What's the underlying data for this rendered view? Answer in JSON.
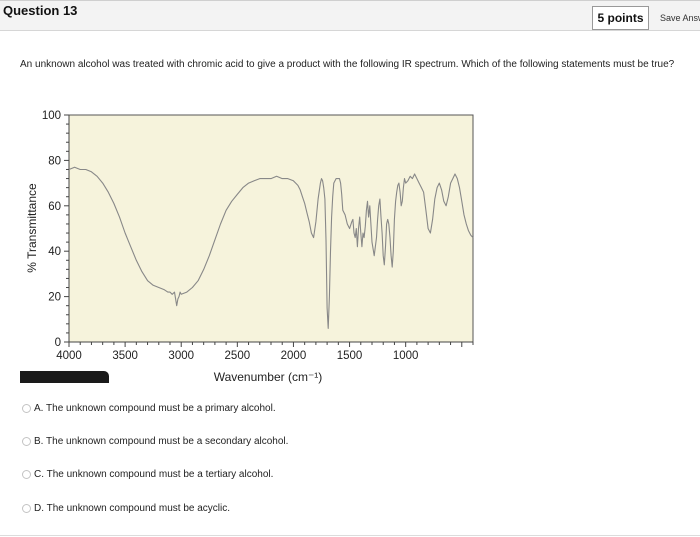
{
  "header": {
    "title": "Question 13",
    "points": "5 points",
    "save_label": "Save Answer"
  },
  "question": {
    "text": "An unknown alcohol was treated with chromic acid to give a product with the following IR spectrum. Which of the following statements must be true?"
  },
  "chart_data": {
    "type": "line",
    "xlabel": "Wavenumber (cm⁻¹)",
    "ylabel": "% Transmittance",
    "xlim": [
      4000,
      400
    ],
    "ylim": [
      0,
      100
    ],
    "x_ticks": [
      4000,
      3500,
      3000,
      2500,
      2000,
      1500,
      1000
    ],
    "y_ticks": [
      0,
      20,
      40,
      60,
      80,
      100
    ],
    "plot_background": "#f6f3dc",
    "line_color": "#888888",
    "series": [
      {
        "x": [
          4000,
          3950,
          3900,
          3850,
          3800,
          3750,
          3700,
          3650,
          3600,
          3550,
          3500,
          3450,
          3400,
          3350,
          3300,
          3250,
          3200,
          3150,
          3120,
          3100,
          3080,
          3060,
          3040,
          3030,
          3020,
          3010,
          3000,
          2950,
          2900,
          2850,
          2800,
          2750,
          2700,
          2650,
          2600,
          2550,
          2500,
          2450,
          2400,
          2350,
          2300,
          2250,
          2200,
          2150,
          2100,
          2050,
          2000,
          1980,
          1960,
          1940,
          1920,
          1900,
          1880,
          1860,
          1840,
          1820,
          1800,
          1780,
          1760,
          1750,
          1740,
          1730,
          1720,
          1710,
          1700,
          1690,
          1680,
          1670,
          1660,
          1650,
          1640,
          1620,
          1600,
          1590,
          1580,
          1570,
          1560,
          1540,
          1520,
          1500,
          1480,
          1470,
          1460,
          1450,
          1440,
          1430,
          1420,
          1410,
          1400,
          1390,
          1380,
          1370,
          1360,
          1350,
          1340,
          1330,
          1320,
          1300,
          1280,
          1260,
          1250,
          1240,
          1230,
          1220,
          1210,
          1200,
          1190,
          1180,
          1170,
          1160,
          1150,
          1140,
          1130,
          1120,
          1110,
          1100,
          1090,
          1080,
          1070,
          1060,
          1050,
          1040,
          1030,
          1020,
          1010,
          1000,
          980,
          960,
          940,
          920,
          900,
          880,
          860,
          840,
          820,
          800,
          780,
          760,
          740,
          720,
          700,
          680,
          660,
          640,
          620,
          600,
          580,
          560,
          540,
          520,
          500,
          480,
          460,
          440,
          420,
          400
        ],
        "y": [
          76,
          77,
          76,
          76,
          75,
          73,
          70,
          66,
          61,
          55,
          48,
          42,
          36,
          31,
          27,
          25,
          24,
          23,
          22,
          22,
          21,
          22,
          16,
          19,
          20,
          22,
          21,
          22,
          24,
          27,
          32,
          38,
          45,
          52,
          58,
          62,
          65,
          68,
          70,
          71,
          72,
          72,
          72,
          73,
          72,
          72,
          71,
          70,
          69,
          67,
          64,
          61,
          57,
          53,
          48,
          46,
          53,
          63,
          70,
          72,
          71,
          68,
          63,
          45,
          15,
          6,
          20,
          40,
          55,
          64,
          70,
          72,
          72,
          72,
          70,
          65,
          58,
          56,
          52,
          50,
          53,
          54,
          48,
          46,
          50,
          42,
          50,
          55,
          48,
          42,
          48,
          46,
          51,
          58,
          62,
          55,
          60,
          44,
          38,
          46,
          54,
          60,
          63,
          55,
          48,
          38,
          34,
          42,
          52,
          54,
          52,
          46,
          38,
          33,
          40,
          54,
          62,
          66,
          69,
          70,
          66,
          60,
          62,
          68,
          72,
          70,
          71,
          73,
          72,
          74,
          72,
          70,
          68,
          66,
          58,
          50,
          48,
          54,
          63,
          68,
          70,
          67,
          62,
          60,
          64,
          70,
          72,
          74,
          72,
          68,
          62,
          56,
          52,
          49,
          47,
          46
        ]
      }
    ]
  },
  "options": [
    {
      "id": "A",
      "label": "A. The unknown compound must be a primary alcohol."
    },
    {
      "id": "B",
      "label": "B. The unknown compound must be a secondary alcohol."
    },
    {
      "id": "C",
      "label": "C. The unknown compound must be a tertiary alcohol."
    },
    {
      "id": "D",
      "label": "D. The unknown compound must be acyclic."
    }
  ]
}
